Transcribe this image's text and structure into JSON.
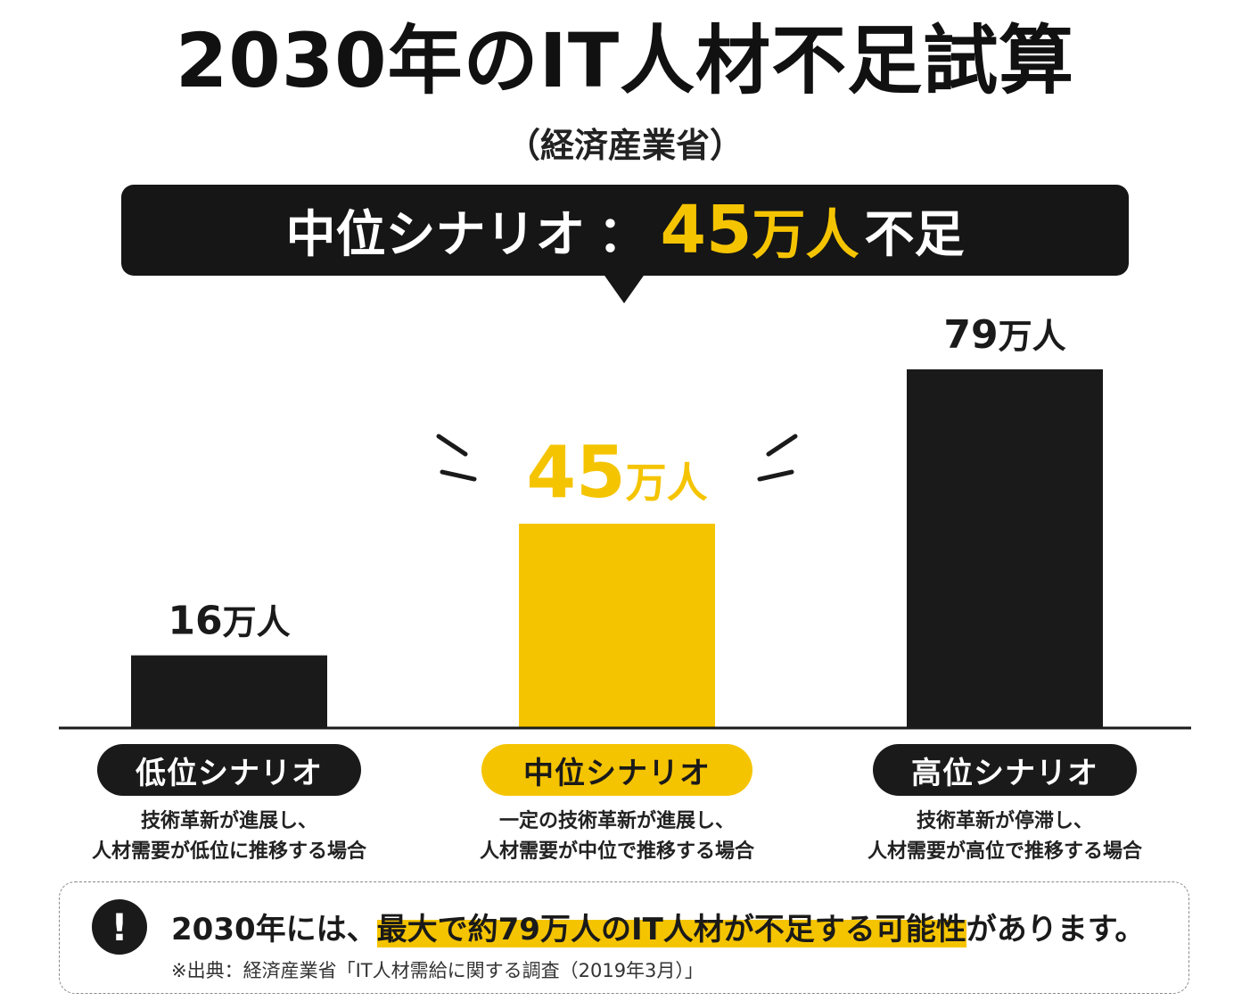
{
  "title": "2030年のIT人材不足試算",
  "subtitle": "（経済産業省）",
  "banner": {
    "label": "中位シナリオ",
    "colon": "：",
    "value": "45",
    "unit": "万人",
    "suffix": "不足"
  },
  "chart_data": {
    "type": "bar",
    "title": "2030年のIT人材不足試算",
    "categories": [
      "低位シナリオ",
      "中位シナリオ",
      "高位シナリオ"
    ],
    "values": [
      16,
      45,
      79
    ],
    "unit": "万人",
    "value_labels": [
      "16万人",
      "45万人",
      "79万人"
    ],
    "highlight_index": 1,
    "colors": [
      "#1a1a1a",
      "#f5c400",
      "#1a1a1a"
    ],
    "descriptions": [
      [
        "技術革新が進展し、",
        "人材需要が低位に推移する場合"
      ],
      [
        "一定の技術革新が進展し、",
        "人材需要が中位で推移する場合"
      ],
      [
        "技術革新が停滞し、",
        "人材需要が高位で推移する場合"
      ]
    ],
    "ylim": [
      0,
      79
    ],
    "grid": false,
    "legend": "none"
  },
  "note": {
    "icon": "exclamation-icon",
    "prefix": "2030年には、",
    "highlight": "最大で約79万人のIT人材が不足する可能性",
    "suffix": "があります。",
    "source": "※出典：経済産業省「IT人材需給に関する調査（2019年3月）」"
  },
  "colors": {
    "accent": "#f5c400",
    "dark": "#1a1a1a"
  }
}
